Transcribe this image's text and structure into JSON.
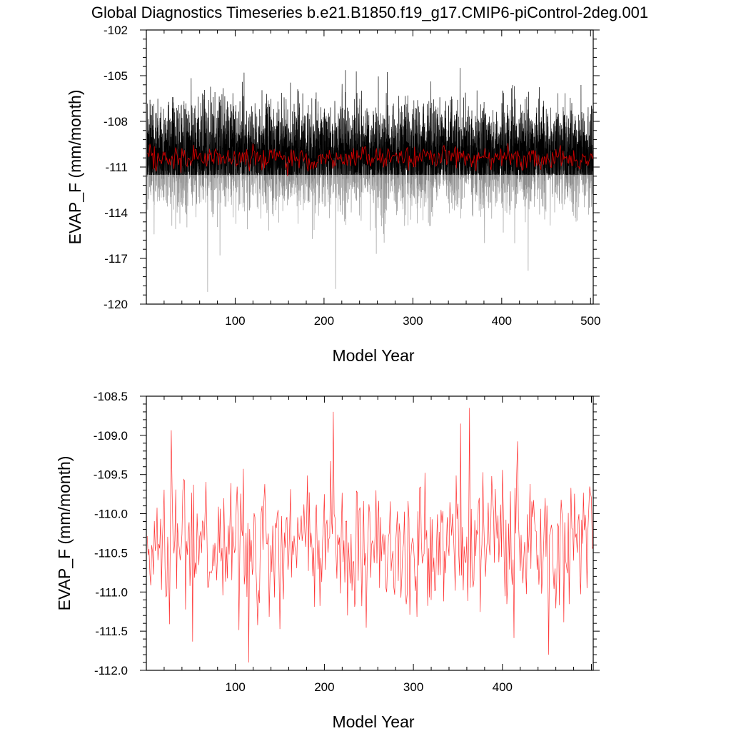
{
  "figure": {
    "title": "Global Diagnostics Timeseries b.e21.B1850.f19_g17.CMIP6-piControl-2deg.001"
  },
  "chart_data": [
    {
      "type": "line",
      "xlabel": "Model Year",
      "ylabel": "EVAP_F (mm/month)",
      "xlim": [
        0,
        503
      ],
      "ylim": [
        -120,
        -102
      ],
      "xticks": [
        100,
        200,
        300,
        400,
        500
      ],
      "xtick_labels": [
        "100",
        "200",
        "300",
        "400",
        "500"
      ],
      "yticks": [
        -120,
        -117,
        -114,
        -111,
        -108,
        -105,
        -102
      ],
      "ytick_labels": [
        "-120",
        "-117",
        "-114",
        "-111",
        "-108",
        "-105",
        "-102"
      ],
      "grid": false,
      "legend": "none",
      "series": [
        {
          "color": "#000000",
          "description": "monthly values, 1-503, dense oscillation",
          "mean": -110.3,
          "typical_range": [
            -115.5,
            -106.0
          ],
          "extremes": [
            {
              "x": 69,
              "y": -119.2
            },
            {
              "x": 213,
              "y": -119.0
            },
            {
              "x": 353,
              "y": -104.5
            },
            {
              "x": 110,
              "y": -104.8
            }
          ]
        },
        {
          "color": "#cc0000",
          "description": "annual means overlay",
          "mean": -110.4,
          "typical_range": [
            -111.5,
            -109.2
          ]
        }
      ]
    },
    {
      "type": "line",
      "xlabel": "Model Year",
      "ylabel": "EVAP_F (mm/month)",
      "xlim": [
        0,
        502
      ],
      "ylim": [
        -112.0,
        -108.5
      ],
      "xticks": [
        100,
        200,
        300,
        400
      ],
      "xtick_labels": [
        "100",
        "200",
        "300",
        "400"
      ],
      "yticks": [
        -112.0,
        -111.5,
        -111.0,
        -110.5,
        -110.0,
        -109.5,
        -109.0,
        -108.5
      ],
      "ytick_labels": [
        "-112.0",
        "-111.5",
        "-111.0",
        "-110.5",
        "-110.0",
        "-109.5",
        "-109.0",
        "-108.5"
      ],
      "grid": false,
      "legend": "none",
      "series": [
        {
          "color": "#ff3333",
          "description": "annual mean",
          "mean": -110.45,
          "typical_range": [
            -111.4,
            -109.4
          ],
          "extremes": [
            {
              "x": 115,
              "y": -111.9
            },
            {
              "x": 210,
              "y": -108.7
            },
            {
              "x": 363,
              "y": -108.65
            },
            {
              "x": 353,
              "y": -108.85
            },
            {
              "x": 452,
              "y": -111.8
            }
          ]
        }
      ]
    }
  ]
}
